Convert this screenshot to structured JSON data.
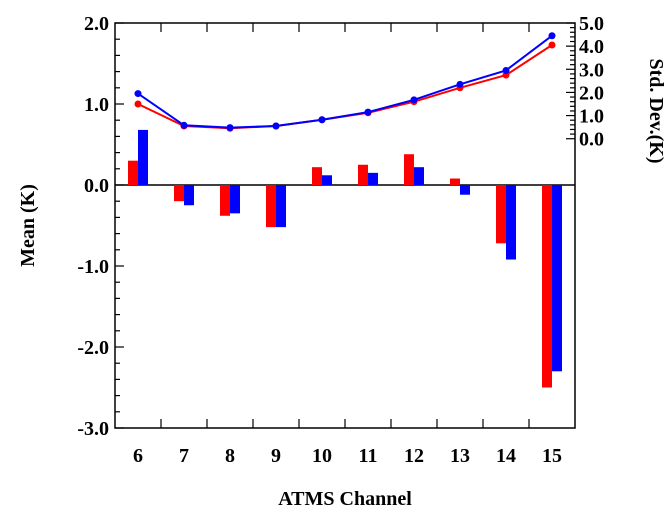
{
  "chart_data": {
    "type": "bar",
    "xlabel": "ATMS Channel",
    "ylabel_left": "Mean (K)",
    "ylabel_right": "Std. Dev.(K)",
    "categories": [
      "6",
      "7",
      "8",
      "9",
      "10",
      "11",
      "12",
      "13",
      "14",
      "15"
    ],
    "ylim_left": [
      -3.0,
      2.0
    ],
    "yticks_left": [
      "-3.0",
      "-2.0",
      "-1.0",
      "0.0",
      "1.0",
      "2.0"
    ],
    "ylim_right": [
      -12.5,
      5.0
    ],
    "yticks_right": [
      "0.0",
      "1.0",
      "2.0",
      "3.0",
      "4.0",
      "5.0"
    ],
    "bar_series": [
      {
        "color": "#ff0000",
        "axis": "left",
        "values": [
          0.3,
          -0.2,
          -0.38,
          -0.52,
          0.22,
          0.25,
          0.38,
          0.08,
          -0.72,
          -2.5
        ]
      },
      {
        "color": "#0000ff",
        "axis": "left",
        "values": [
          0.68,
          -0.25,
          -0.35,
          -0.52,
          0.12,
          0.15,
          0.22,
          -0.12,
          -0.92,
          -2.3
        ]
      }
    ],
    "line_series": [
      {
        "color": "#ff0000",
        "axis": "right",
        "values": [
          1.5,
          0.55,
          0.45,
          0.55,
          0.82,
          1.12,
          1.6,
          2.2,
          2.75,
          4.05
        ]
      },
      {
        "color": "#0000ff",
        "axis": "right",
        "values": [
          1.95,
          0.58,
          0.48,
          0.55,
          0.82,
          1.15,
          1.68,
          2.35,
          2.95,
          4.45
        ]
      }
    ],
    "grid": false,
    "legend": "none"
  }
}
